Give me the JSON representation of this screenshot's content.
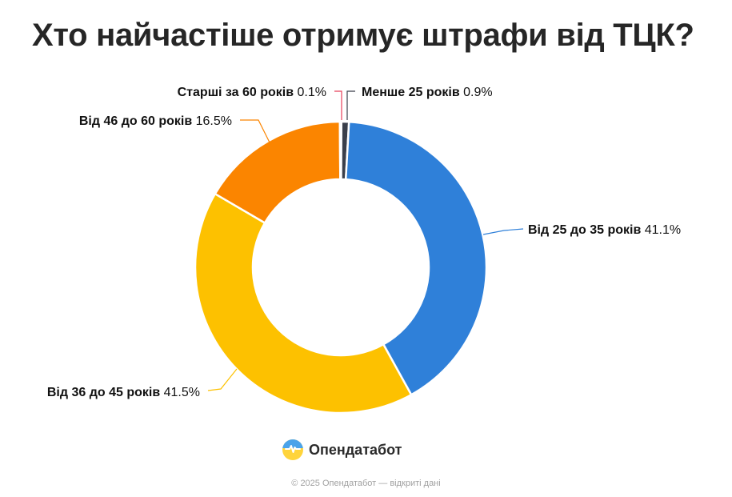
{
  "header": {
    "title": "Хто найчастіше отримує штрафи від ТЦК?"
  },
  "chart_data": {
    "type": "pie",
    "subtype": "donut",
    "title": "Хто найчастіше отримує штрафи від ТЦК?",
    "slices": [
      {
        "label": "Менше 25 років",
        "value": 0.9,
        "value_text": "0.9%",
        "color": "#3a3f4b"
      },
      {
        "label": "Від 25 до 35 років",
        "value": 41.1,
        "value_text": "41.1%",
        "color": "#2f80d9"
      },
      {
        "label": "Від 36 до 45 років",
        "value": 41.5,
        "value_text": "41.5%",
        "color": "#fdc100"
      },
      {
        "label": "Від 46 до 60 років",
        "value": 16.5,
        "value_text": "16.5%",
        "color": "#fb8500"
      },
      {
        "label": "Старші за 60 років",
        "value": 0.1,
        "value_text": "0.1%",
        "color": "#e8415a"
      }
    ]
  },
  "brand": {
    "name": "Опендатабот",
    "logo_icon": "opendatabot-logo-icon"
  },
  "footer": {
    "text": "© 2025 Опендатабот — відкриті дані"
  }
}
